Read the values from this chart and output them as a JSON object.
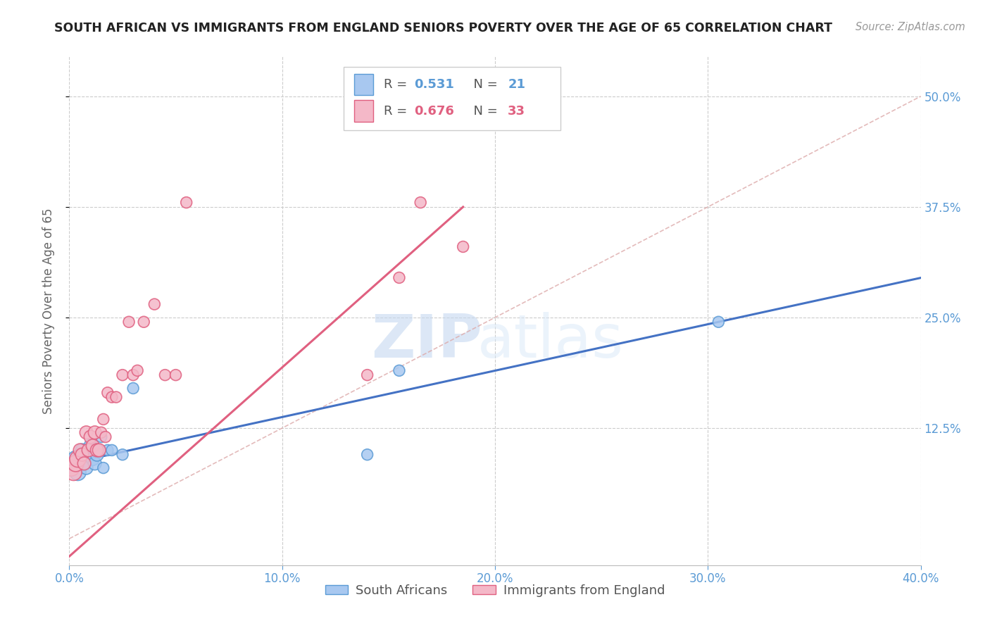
{
  "title": "SOUTH AFRICAN VS IMMIGRANTS FROM ENGLAND SENIORS POVERTY OVER THE AGE OF 65 CORRELATION CHART",
  "source": "Source: ZipAtlas.com",
  "ylabel": "Seniors Poverty Over the Age of 65",
  "xlim": [
    0.0,
    0.4
  ],
  "ylim": [
    -0.03,
    0.545
  ],
  "yticks": [
    0.125,
    0.25,
    0.375,
    0.5
  ],
  "ytick_labels": [
    "12.5%",
    "25.0%",
    "37.5%",
    "50.0%"
  ],
  "xticks": [
    0.0,
    0.1,
    0.2,
    0.3,
    0.4
  ],
  "xtick_labels": [
    "0.0%",
    "10.0%",
    "20.0%",
    "30.0%",
    "40.0%"
  ],
  "blue_fill": "#a8c8f0",
  "blue_edge": "#5b9bd5",
  "pink_fill": "#f4b8c8",
  "pink_edge": "#e06080",
  "trend_blue": "#4472c4",
  "trend_pink": "#e06080",
  "R_blue": 0.531,
  "N_blue": 21,
  "R_pink": 0.676,
  "N_pink": 33,
  "blue_scatter_x": [
    0.002,
    0.003,
    0.004,
    0.005,
    0.006,
    0.007,
    0.008,
    0.009,
    0.01,
    0.011,
    0.012,
    0.013,
    0.015,
    0.016,
    0.018,
    0.02,
    0.025,
    0.03,
    0.14,
    0.155,
    0.305
  ],
  "blue_scatter_y": [
    0.085,
    0.09,
    0.075,
    0.095,
    0.1,
    0.085,
    0.08,
    0.095,
    0.105,
    0.09,
    0.085,
    0.095,
    0.115,
    0.08,
    0.1,
    0.1,
    0.095,
    0.17,
    0.095,
    0.19,
    0.245
  ],
  "pink_scatter_x": [
    0.001,
    0.002,
    0.003,
    0.004,
    0.005,
    0.006,
    0.007,
    0.008,
    0.009,
    0.01,
    0.011,
    0.012,
    0.013,
    0.014,
    0.015,
    0.016,
    0.017,
    0.018,
    0.02,
    0.022,
    0.025,
    0.028,
    0.03,
    0.032,
    0.035,
    0.04,
    0.045,
    0.05,
    0.055,
    0.14,
    0.155,
    0.165,
    0.185
  ],
  "pink_scatter_y": [
    0.08,
    0.075,
    0.085,
    0.09,
    0.1,
    0.095,
    0.085,
    0.12,
    0.1,
    0.115,
    0.105,
    0.12,
    0.1,
    0.1,
    0.12,
    0.135,
    0.115,
    0.165,
    0.16,
    0.16,
    0.185,
    0.245,
    0.185,
    0.19,
    0.245,
    0.265,
    0.185,
    0.185,
    0.38,
    0.185,
    0.295,
    0.38,
    0.33
  ],
  "watermark_zip": "ZIP",
  "watermark_atlas": "atlas",
  "grid_color": "#cccccc",
  "bg_color": "#ffffff",
  "title_color": "#222222",
  "axis_label_color": "#5b9bd5",
  "legend_labels": [
    "South Africans",
    "Immigrants from England"
  ],
  "legend_R_color_blue": "#5b9bd5",
  "legend_R_color_pink": "#e06080",
  "legend_N_color_blue": "#5b9bd5",
  "legend_N_color_pink": "#e06080"
}
